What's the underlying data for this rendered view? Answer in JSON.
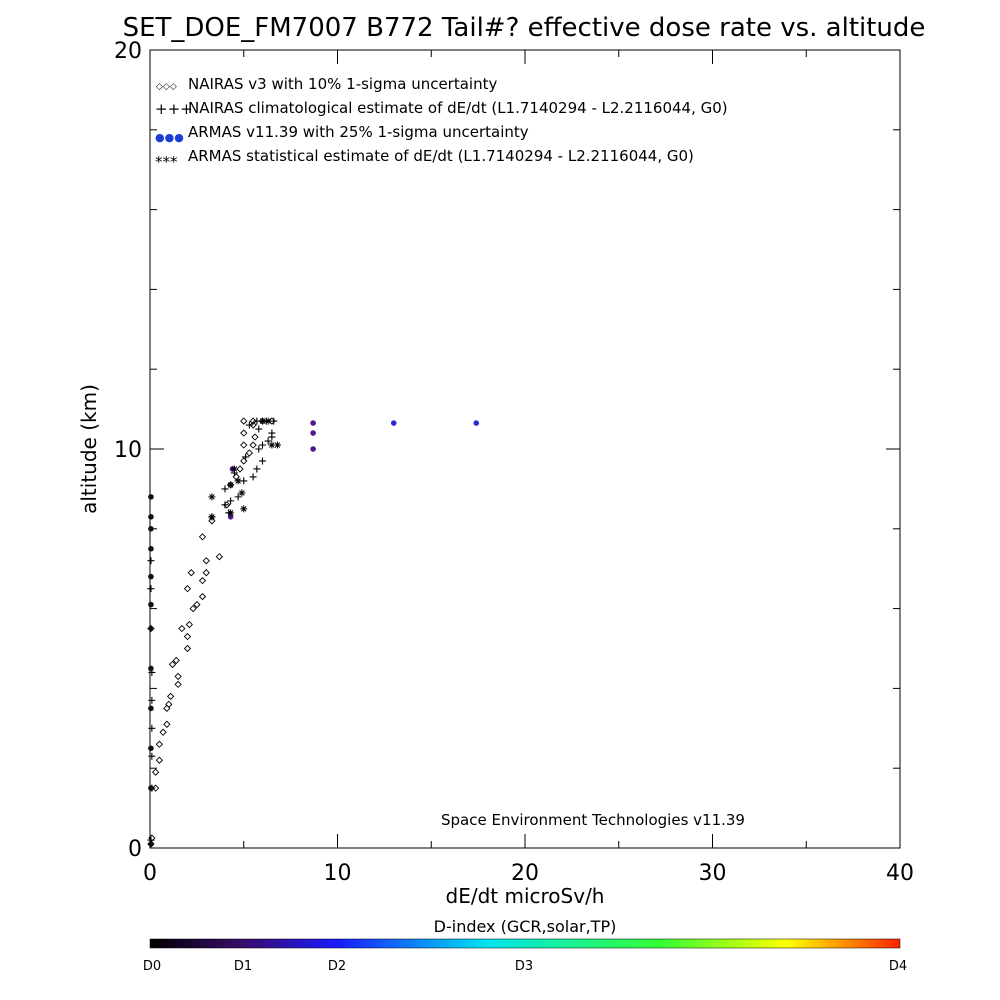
{
  "chart_data": {
    "type": "scatter",
    "title": "SET_DOE_FM7007  B772 Tail#? effective dose rate vs. altitude",
    "xlabel": "dE/dt microSv/h",
    "ylabel": "altitude (km)",
    "xlim": [
      0,
      40
    ],
    "ylim": [
      0,
      20
    ],
    "x_ticks": [
      "0",
      "10",
      "20",
      "30",
      "40"
    ],
    "y_ticks": [
      "0",
      "10",
      "20"
    ],
    "grid": false,
    "legend_position": "top-left",
    "legend": [
      {
        "symbol": "◇◇◇",
        "label": "NAIRAS v3 with 10% 1-sigma uncertainty"
      },
      {
        "symbol": "+++",
        "label": "NAIRAS climatological estimate of dE/dt (L1.7140294 - L2.2116044, G0)"
      },
      {
        "symbol": "●●●",
        "label": "ARMAS v11.39 with 25% 1-sigma uncertainty"
      },
      {
        "symbol": "***",
        "label": "ARMAS statistical estimate of dE/dt (L1.7140294 - L2.2116044, G0)"
      }
    ],
    "credit": "Space Environment Technologies v11.39",
    "colorbar": {
      "title": "D-index (GCR,solar,TP)",
      "labels": [
        "D0",
        "D1",
        "D2",
        "D3",
        "D4"
      ]
    },
    "series": [
      {
        "name": "NAIRAS v3 with 10% 1-sigma uncertainty",
        "marker": "diamond",
        "points": [
          [
            0.05,
            0.1
          ],
          [
            0.1,
            0.25
          ],
          [
            0.3,
            1.5
          ],
          [
            0.3,
            1.9
          ],
          [
            0.5,
            2.2
          ],
          [
            0.5,
            2.6
          ],
          [
            0.7,
            2.9
          ],
          [
            0.9,
            3.1
          ],
          [
            0.9,
            3.5
          ],
          [
            1.0,
            3.6
          ],
          [
            1.1,
            3.8
          ],
          [
            1.5,
            4.1
          ],
          [
            1.5,
            4.3
          ],
          [
            1.2,
            4.6
          ],
          [
            1.4,
            4.7
          ],
          [
            2.0,
            5.0
          ],
          [
            2.0,
            5.3
          ],
          [
            1.7,
            5.5
          ],
          [
            2.1,
            5.6
          ],
          [
            2.3,
            6.0
          ],
          [
            2.5,
            6.1
          ],
          [
            2.8,
            6.3
          ],
          [
            2.0,
            6.5
          ],
          [
            2.8,
            6.7
          ],
          [
            3.0,
            6.9
          ],
          [
            2.2,
            6.9
          ],
          [
            3.0,
            7.2
          ],
          [
            3.7,
            7.3
          ],
          [
            2.8,
            7.8
          ],
          [
            3.3,
            8.2
          ],
          [
            4.1,
            8.6
          ],
          [
            4.3,
            9.1
          ],
          [
            4.6,
            9.3
          ],
          [
            4.8,
            9.5
          ],
          [
            5.0,
            9.7
          ],
          [
            5.3,
            9.9
          ],
          [
            5.5,
            10.1
          ],
          [
            5.0,
            10.1
          ],
          [
            5.6,
            10.3
          ],
          [
            5.0,
            10.4
          ],
          [
            5.5,
            10.6
          ],
          [
            5.0,
            10.7
          ],
          [
            5.5,
            10.7
          ],
          [
            6.0,
            10.7
          ],
          [
            6.5,
            10.7
          ]
        ]
      },
      {
        "name": "NAIRAS climatological estimate of dE/dt (L1.7140294 - L2.2116044, G0)",
        "marker": "plus",
        "points": [
          [
            0.05,
            0.2
          ],
          [
            0.1,
            1.5
          ],
          [
            0.1,
            2.3
          ],
          [
            0.1,
            3.0
          ],
          [
            0.1,
            3.7
          ],
          [
            0.1,
            4.4
          ],
          [
            0.05,
            5.5
          ],
          [
            0.05,
            6.5
          ],
          [
            0.05,
            7.2
          ],
          [
            3.3,
            8.3
          ],
          [
            4.2,
            8.4
          ],
          [
            4.0,
            8.6
          ],
          [
            4.3,
            8.7
          ],
          [
            4.7,
            8.8
          ],
          [
            4.0,
            9.0
          ],
          [
            5.0,
            9.2
          ],
          [
            5.5,
            9.3
          ],
          [
            4.5,
            9.4
          ],
          [
            5.7,
            9.5
          ],
          [
            6.0,
            9.7
          ],
          [
            5.1,
            9.8
          ],
          [
            5.8,
            10.0
          ],
          [
            6.0,
            10.1
          ],
          [
            6.3,
            10.2
          ],
          [
            6.5,
            10.3
          ],
          [
            5.8,
            10.5
          ],
          [
            6.5,
            10.4
          ],
          [
            5.3,
            10.6
          ],
          [
            5.7,
            10.7
          ],
          [
            6.2,
            10.7
          ],
          [
            6.6,
            10.7
          ]
        ]
      },
      {
        "name": "ARMAS v11.39 with 25% 1-sigma uncertainty",
        "marker": "dot",
        "points": [
          [
            0.05,
            0.1
          ],
          [
            0.05,
            1.5
          ],
          [
            0.05,
            2.5
          ],
          [
            0.05,
            3.5
          ],
          [
            0.05,
            4.5
          ],
          [
            0.05,
            5.5
          ],
          [
            0.05,
            6.1
          ],
          [
            0.05,
            6.8
          ],
          [
            0.05,
            7.5
          ],
          [
            0.05,
            8.0
          ],
          [
            0.05,
            8.3
          ],
          [
            0.05,
            8.8
          ],
          [
            4.3,
            8.3
          ],
          [
            4.4,
            9.5
          ],
          [
            8.7,
            10.0
          ],
          [
            8.7,
            10.4
          ],
          [
            8.7,
            10.65
          ],
          [
            13.0,
            10.65
          ],
          [
            17.4,
            10.65
          ]
        ]
      },
      {
        "name": "ARMAS statistical estimate of dE/dt (L1.7140294 - L2.2116044, G0)",
        "marker": "asterisk",
        "points": [
          [
            3.3,
            8.3
          ],
          [
            3.3,
            8.8
          ],
          [
            4.3,
            8.4
          ],
          [
            4.3,
            9.1
          ],
          [
            4.7,
            9.2
          ],
          [
            4.9,
            8.9
          ],
          [
            5.0,
            8.5
          ],
          [
            4.5,
            9.5
          ],
          [
            6.5,
            10.1
          ],
          [
            6.8,
            10.1
          ],
          [
            6.0,
            10.7
          ],
          [
            6.3,
            10.7
          ]
        ]
      }
    ]
  }
}
